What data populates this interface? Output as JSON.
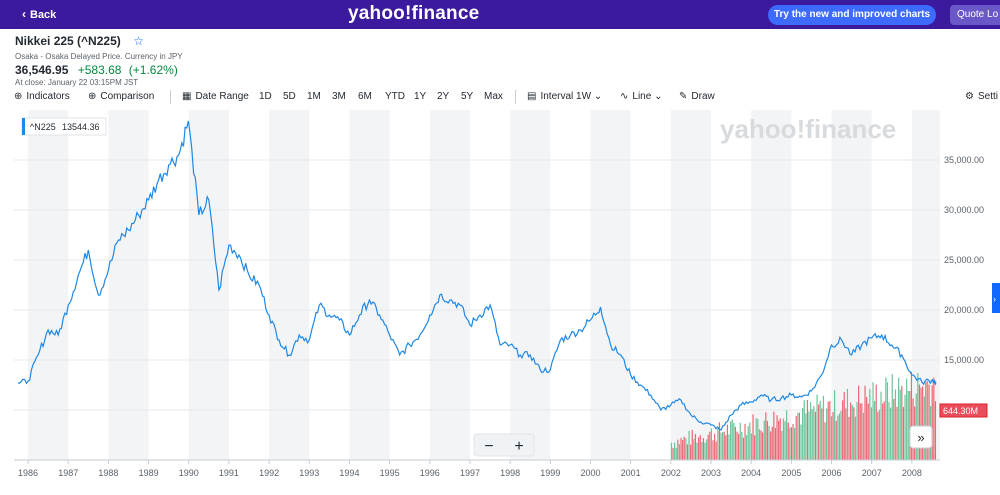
{
  "topbar": {
    "back_label": "Back",
    "logo_text": "yahoo!finance",
    "try_label": "Try the new and improved charts",
    "quote_label": "Quote Lo"
  },
  "quote": {
    "title": "Nikkei 225 (^N225)",
    "exchange": "Osaka - Osaka Delayed Price. Currency in JPY",
    "price": "36,546.95",
    "change": "+583.68",
    "change_pct": "(+1.62%)",
    "close_time": "At close: January 22 03:15PM JST",
    "colors": {
      "positive": "#008a3e",
      "accent": "#0f69ff"
    }
  },
  "toolbar": {
    "indicators": "Indicators",
    "comparison": "Comparison",
    "date_range": "Date Range",
    "ranges": [
      "1D",
      "5D",
      "1M",
      "3M",
      "6M",
      "YTD",
      "1Y",
      "2Y",
      "5Y",
      "Max"
    ],
    "interval_label": "Interval",
    "interval_value": "1W",
    "chart_type": "Line",
    "draw": "Draw",
    "settings": "Setti"
  },
  "chart_data": {
    "type": "line",
    "series": [
      {
        "name": "^N225",
        "color": "#1e88e5",
        "x": [
          1985.75,
          1986.0,
          1986.25,
          1986.5,
          1986.75,
          1987.0,
          1987.25,
          1987.5,
          1987.75,
          1988.0,
          1988.25,
          1988.5,
          1988.75,
          1989.0,
          1989.25,
          1989.5,
          1989.75,
          1989.99,
          1990.25,
          1990.5,
          1990.75,
          1991.0,
          1991.25,
          1991.5,
          1991.75,
          1992.0,
          1992.25,
          1992.5,
          1992.75,
          1993.0,
          1993.25,
          1993.5,
          1993.75,
          1994.0,
          1994.25,
          1994.5,
          1994.75,
          1995.0,
          1995.25,
          1995.5,
          1995.75,
          1996.0,
          1996.25,
          1996.5,
          1996.75,
          1997.0,
          1997.25,
          1997.5,
          1997.75,
          1998.0,
          1998.25,
          1998.5,
          1998.75,
          1999.0,
          1999.25,
          1999.5,
          1999.75,
          2000.0,
          2000.25,
          2000.5,
          2000.75,
          2001.0,
          2001.25,
          2001.5,
          2001.75,
          2002.0,
          2002.25,
          2002.5,
          2002.75,
          2003.0,
          2003.25,
          2003.5,
          2003.75,
          2004.0,
          2004.25,
          2004.5,
          2004.75,
          2005.0,
          2005.25,
          2005.5,
          2005.75,
          2006.0,
          2006.25,
          2006.5,
          2006.75,
          2007.0,
          2007.25,
          2007.5,
          2007.75,
          2008.0,
          2008.25,
          2008.5,
          2008.6
        ],
        "values": [
          12700,
          12900,
          15500,
          18000,
          17500,
          20500,
          23500,
          26000,
          21500,
          24000,
          27000,
          28000,
          29500,
          31000,
          33000,
          34500,
          35500,
          38900,
          29500,
          31000,
          22000,
          26500,
          25500,
          23500,
          22500,
          19500,
          17000,
          15500,
          17500,
          17000,
          20500,
          19500,
          19000,
          17500,
          19500,
          21000,
          19500,
          17500,
          15500,
          16500,
          17500,
          19500,
          21500,
          21000,
          20500,
          18500,
          19500,
          20500,
          16500,
          16500,
          15500,
          15500,
          14000,
          14000,
          17000,
          17500,
          18000,
          19000,
          20300,
          16500,
          15500,
          13500,
          12500,
          11500,
          10000,
          10500,
          11000,
          9500,
          8800,
          8500,
          8000,
          9500,
          10500,
          10800,
          11500,
          11000,
          11200,
          11500,
          11300,
          11900,
          13500,
          16500,
          17000,
          15500,
          16500,
          17200,
          17500,
          16500,
          15500,
          13500,
          12800,
          13000,
          12800
        ]
      }
    ],
    "volume": {
      "name": "Volume",
      "color_up": "#53b987",
      "color_down": "#eb4d5c",
      "start": 2002.0,
      "end": 2008.6,
      "last_label": "644.30M"
    },
    "xlabel": "",
    "ylabel": "",
    "xlim": [
      1985.65,
      2008.7
    ],
    "ylim": [
      5000,
      40000
    ],
    "x_ticks": [
      "1986",
      "1987",
      "1988",
      "1989",
      "1990",
      "1991",
      "1992",
      "1993",
      "1994",
      "1995",
      "1996",
      "1997",
      "1998",
      "1999",
      "2000",
      "2001",
      "2002",
      "2003",
      "2004",
      "2005",
      "2006",
      "2007",
      "2008"
    ],
    "y_ticks": [
      "10,000.00",
      "15,000.00",
      "20,000.00",
      "25,000.00",
      "30,000.00",
      "35,000.00"
    ],
    "legend": {
      "label": "^N225",
      "value": "13544.36",
      "position": "top-left"
    },
    "last_value_label": "644.30M",
    "grid": true,
    "watermark": "yahoo!finance",
    "zoom_out": "−",
    "zoom_in": "+",
    "expand": "»"
  }
}
